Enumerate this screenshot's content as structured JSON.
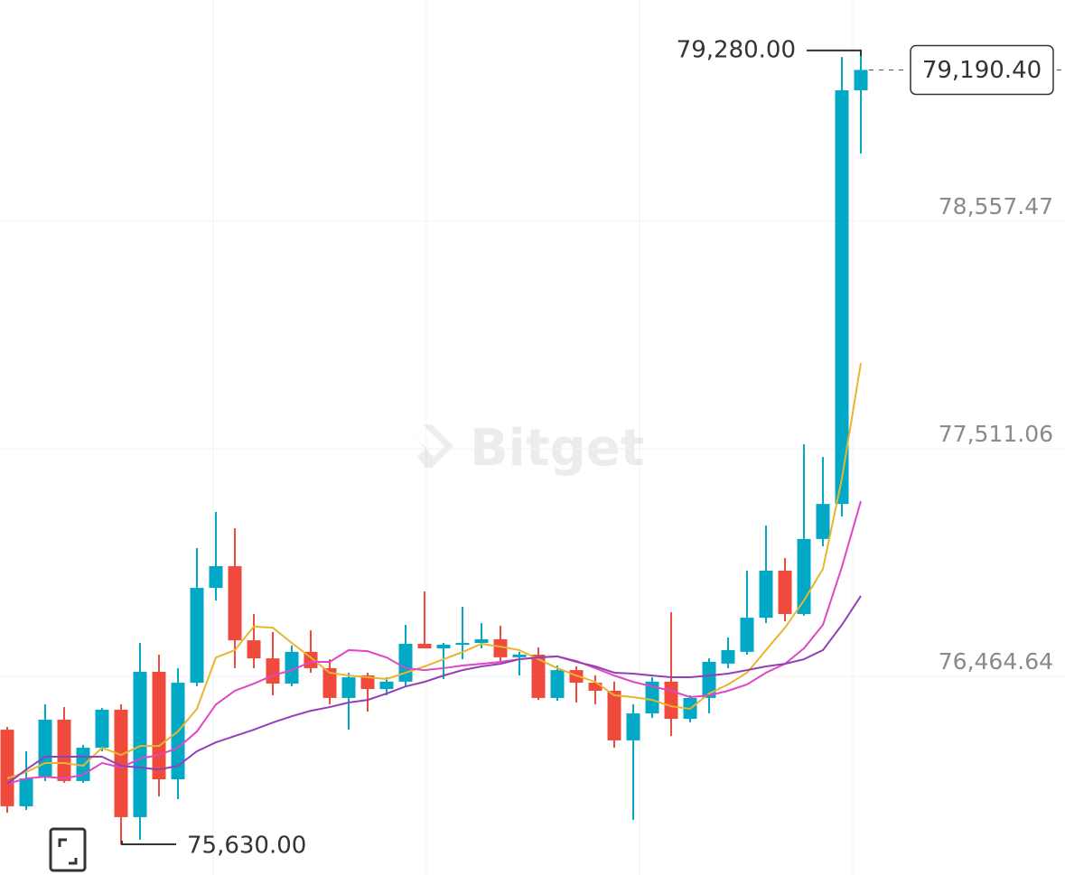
{
  "chart_data": {
    "type": "candlestick",
    "watermark": "Bitget",
    "ylim": [
      75489,
      79512
    ],
    "yticks": [
      {
        "value": 78557.47,
        "label": "78,557.47"
      },
      {
        "value": 77511.06,
        "label": "77,511.06"
      },
      {
        "value": 76464.64,
        "label": "76,464.64"
      }
    ],
    "up_color": "#02a9c7",
    "down_color": "#ef4a3b",
    "grid": true,
    "open": [
      76157,
      75805,
      75942,
      76203,
      75921,
      76074,
      76249,
      75755,
      76423,
      75929,
      76373,
      76809,
      76909,
      76568,
      76485,
      76369,
      76515,
      76440,
      76303,
      76407,
      76344,
      76378,
      76552,
      76531,
      76548,
      76556,
      76573,
      76490,
      76502,
      76303,
      76431,
      76373,
      76336,
      76108,
      76232,
      76378,
      76207,
      76303,
      76461,
      76515,
      76672,
      76888,
      76689,
      77034,
      77195,
      79097
    ],
    "high": [
      76170,
      76058,
      76274,
      76261,
      76087,
      76257,
      76274,
      76556,
      76502,
      76440,
      76992,
      77158,
      77083,
      76689,
      76606,
      76544,
      76614,
      76481,
      76419,
      76419,
      76398,
      76639,
      76793,
      76556,
      76722,
      76647,
      76635,
      76515,
      76535,
      76452,
      76448,
      76407,
      76378,
      76274,
      76398,
      76697,
      76315,
      76485,
      76581,
      76888,
      77096,
      76946,
      77470,
      77411,
      79250,
      79280
    ],
    "low": [
      75775,
      75788,
      75921,
      75913,
      75913,
      76058,
      75630,
      75651,
      75850,
      75838,
      76357,
      76751,
      76440,
      76440,
      76315,
      76357,
      76419,
      76274,
      76157,
      76240,
      76315,
      76357,
      76531,
      76390,
      76481,
      76531,
      76473,
      76407,
      76294,
      76290,
      76282,
      76274,
      76074,
      75742,
      76211,
      76128,
      76191,
      76232,
      76440,
      76502,
      76647,
      76656,
      76681,
      77000,
      77137,
      78806
    ],
    "close": [
      75805,
      75933,
      76203,
      75921,
      76074,
      76249,
      75755,
      76423,
      75929,
      76373,
      76809,
      76909,
      76568,
      76485,
      76369,
      76515,
      76440,
      76303,
      76398,
      76344,
      76378,
      76552,
      76531,
      76548,
      76556,
      76573,
      76490,
      76502,
      76303,
      76431,
      76373,
      76336,
      76108,
      76232,
      76378,
      76207,
      76303,
      76469,
      76523,
      76672,
      76888,
      76689,
      77034,
      77195,
      79097,
      79190.4
    ],
    "lines": [
      {
        "color": "#e8b52e",
        "values": [
          75933,
          75962,
          76004,
          76004,
          75991,
          76074,
          76041,
          76082,
          76082,
          76149,
          76253,
          76489,
          76523,
          76631,
          76626,
          76556,
          76489,
          76419,
          76406,
          76398,
          76390,
          76419,
          76448,
          76481,
          76514,
          76552,
          76539,
          76523,
          76481,
          76440,
          76406,
          76377,
          76315,
          76307,
          76294,
          76265,
          76253,
          76323,
          76365,
          76419,
          76523,
          76626,
          76751,
          76896,
          77311,
          77843
        ]
      },
      {
        "color": "#e046c6",
        "values": [
          75908,
          75933,
          75941,
          75933,
          75950,
          76004,
          75983,
          76024,
          76041,
          76074,
          76149,
          76273,
          76336,
          76369,
          76406,
          76431,
          76469,
          76469,
          76523,
          76518,
          76489,
          76440,
          76431,
          76440,
          76452,
          76460,
          76469,
          76481,
          76489,
          76494,
          76473,
          76440,
          76406,
          76377,
          76356,
          76336,
          76307,
          76315,
          76336,
          76365,
          76419,
          76460,
          76531,
          76639,
          76905,
          77208
        ]
      },
      {
        "color": "#9440b4",
        "values": [
          75908,
          75974,
          76033,
          76033,
          76033,
          76033,
          75991,
          75983,
          75974,
          75991,
          76058,
          76099,
          76128,
          76157,
          76190,
          76219,
          76244,
          76261,
          76282,
          76294,
          76323,
          76356,
          76377,
          76406,
          76431,
          76448,
          76460,
          76481,
          76489,
          76494,
          76469,
          76448,
          76419,
          76415,
          76406,
          76398,
          76398,
          76406,
          76415,
          76431,
          76448,
          76460,
          76481,
          76523,
          76639,
          76772
        ]
      }
    ],
    "high_marker": {
      "value": 79280,
      "label": "79,280.00"
    },
    "low_marker": {
      "value": 75630,
      "label": "75,630.00"
    },
    "last_price": {
      "value": 79190.4,
      "label": "79,190.40"
    }
  }
}
